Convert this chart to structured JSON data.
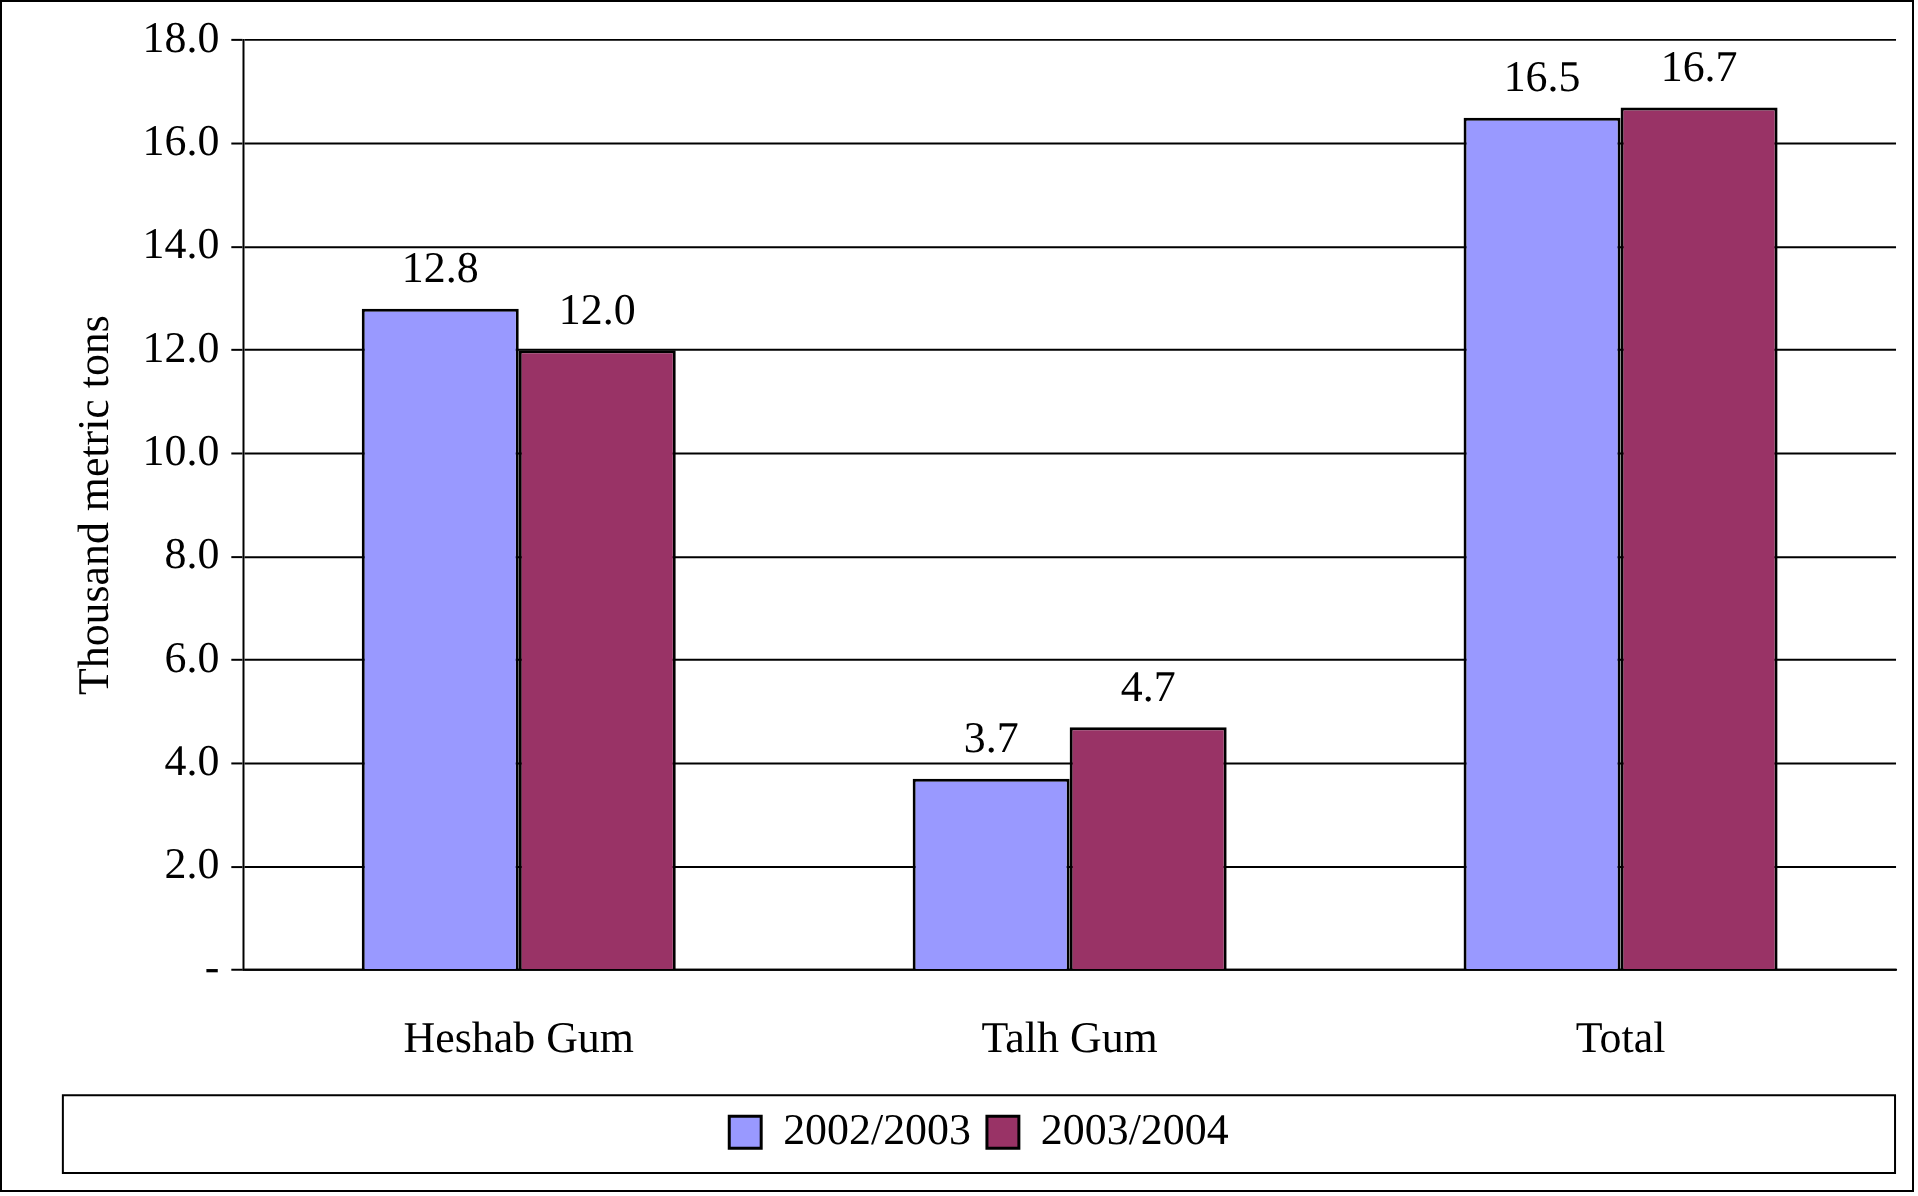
{
  "chart_data": {
    "type": "bar",
    "ylabel": "Thousand metric tons",
    "categories": [
      "Heshab Gum",
      "Talh Gum",
      "Total"
    ],
    "series": [
      {
        "name": "2002/2003",
        "color": "#9999ff",
        "values": [
          12.8,
          3.7,
          16.5
        ],
        "value_labels": [
          "12.8",
          "3.7",
          "16.5"
        ]
      },
      {
        "name": "2003/2004",
        "color": "#993366",
        "values": [
          12.0,
          4.7,
          16.7
        ],
        "value_labels": [
          "12.0",
          "4.7",
          "16.7"
        ]
      }
    ],
    "ylim": [
      0,
      18
    ],
    "yticks": [
      {
        "value": 0,
        "label": "-"
      },
      {
        "value": 2,
        "label": "2.0"
      },
      {
        "value": 4,
        "label": "4.0"
      },
      {
        "value": 6,
        "label": "6.0"
      },
      {
        "value": 8,
        "label": "8.0"
      },
      {
        "value": 10,
        "label": "10.0"
      },
      {
        "value": 12,
        "label": "12.0"
      },
      {
        "value": 14,
        "label": "14.0"
      },
      {
        "value": 16,
        "label": "16.0"
      },
      {
        "value": 18,
        "label": "18.0"
      }
    ],
    "grid": "y",
    "legend": "bottom"
  }
}
